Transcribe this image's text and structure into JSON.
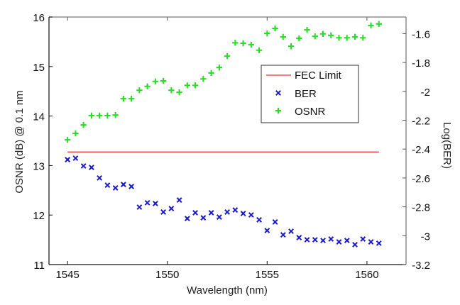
{
  "chart_data": {
    "type": "scatter",
    "title": "",
    "xlabel": "Wavelength (nm)",
    "ylabel_left": "OSNR (dB) @ 0.1 nm",
    "ylabel_right": "Log(BER)",
    "xlim": [
      1544.07,
      1561.96
    ],
    "ylim_left": [
      11,
      16
    ],
    "ylim_right": [
      -3.2,
      -1.485
    ],
    "x_ticks": [
      1545,
      1550,
      1555,
      1560
    ],
    "x_tick_labels": [
      "1545",
      "1550",
      "1555",
      "1560"
    ],
    "y_left_ticks": [
      11,
      12,
      13,
      14,
      15,
      16
    ],
    "y_left_tick_labels": [
      "11",
      "12",
      "13",
      "14",
      "15",
      "16"
    ],
    "y_right_ticks": [
      -3.2,
      -3.0,
      -2.8,
      -2.6,
      -2.4,
      -2.2,
      -2.0,
      -1.8,
      -1.6
    ],
    "y_right_tick_labels": [
      "-3.2",
      "-3",
      "-2.8",
      "-2.6",
      "-2.4",
      "-2.2",
      "-2",
      "-1.8",
      "-1.6"
    ],
    "grid": false,
    "legend_placement": "upper-right-center",
    "x": [
      1545.0,
      1545.4,
      1545.8,
      1546.2,
      1546.6,
      1547.0,
      1547.4,
      1547.8,
      1548.2,
      1548.6,
      1549.0,
      1549.4,
      1549.8,
      1550.2,
      1550.6,
      1551.0,
      1551.4,
      1551.8,
      1552.2,
      1552.6,
      1553.0,
      1553.4,
      1553.8,
      1554.2,
      1554.6,
      1555.0,
      1555.4,
      1555.8,
      1556.2,
      1556.6,
      1557.0,
      1557.4,
      1557.8,
      1558.2,
      1558.6,
      1559.0,
      1559.4,
      1559.8,
      1560.2,
      1560.6
    ],
    "series": [
      {
        "name": "FEC Limit",
        "type": "line",
        "axis": "right",
        "color": "#e03030",
        "x": [
          1545.0,
          1560.6
        ],
        "values": [
          -2.42,
          -2.42
        ]
      },
      {
        "name": "BER",
        "type": "scatter",
        "marker": "x",
        "axis": "right",
        "color": "#1a1acc",
        "values": [
          -2.473,
          -2.463,
          -2.517,
          -2.527,
          -2.6,
          -2.65,
          -2.669,
          -2.645,
          -2.659,
          -2.802,
          -2.772,
          -2.777,
          -2.836,
          -2.812,
          -2.753,
          -2.881,
          -2.841,
          -2.876,
          -2.841,
          -2.871,
          -2.836,
          -2.822,
          -2.846,
          -2.856,
          -2.89,
          -2.964,
          -2.905,
          -2.994,
          -2.969,
          -3.013,
          -3.028,
          -3.028,
          -3.033,
          -3.023,
          -3.043,
          -3.033,
          -3.062,
          -3.023,
          -3.043,
          -3.052
        ]
      },
      {
        "name": "OSNR",
        "type": "scatter",
        "marker": "+",
        "axis": "left",
        "color": "#22dd22",
        "values": [
          13.52,
          13.65,
          13.82,
          14.01,
          14.01,
          14.01,
          14.02,
          14.35,
          14.35,
          14.52,
          14.6,
          14.7,
          14.71,
          14.52,
          14.48,
          14.62,
          14.62,
          14.75,
          14.87,
          14.98,
          15.21,
          15.48,
          15.47,
          15.44,
          15.33,
          15.67,
          15.77,
          15.6,
          15.41,
          15.57,
          15.74,
          15.61,
          15.66,
          15.63,
          15.58,
          15.58,
          15.6,
          15.58,
          15.83,
          15.86
        ]
      }
    ],
    "legend": [
      "FEC Limit",
      "BER",
      "OSNR"
    ]
  }
}
